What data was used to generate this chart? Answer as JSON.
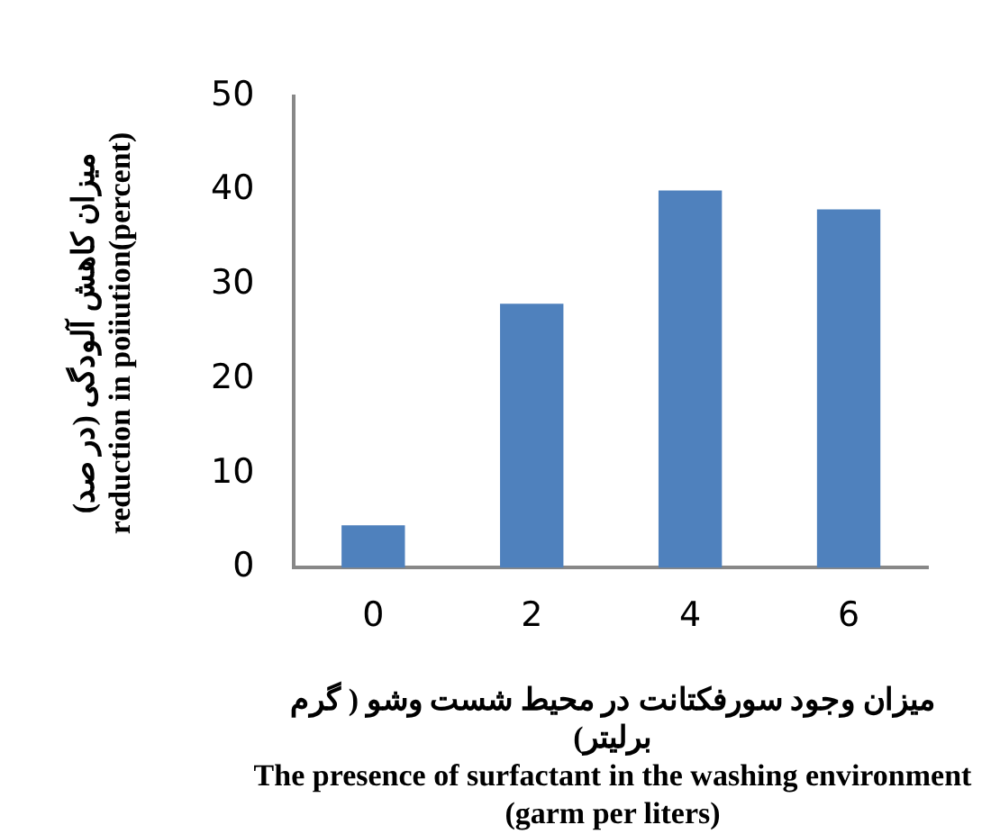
{
  "chart_data": {
    "type": "bar",
    "categories": [
      "0",
      "2",
      "4",
      "6"
    ],
    "values": [
      4.5,
      28,
      40,
      38
    ],
    "color": "#4f81bd",
    "ylim": [
      0,
      50
    ],
    "yticks": [
      0,
      10,
      20,
      30,
      40,
      50
    ],
    "grid": false,
    "legend": false,
    "xlabel": "میزان وجود سورفکتانت در محیط شست وشو ( گرم برلیتر)\nThe presence of surfactant in the washing environment (garm per liters)",
    "ylabel": "میزان کاهش آلودگی (در صد)\nreduction in poiiution(percent)"
  }
}
